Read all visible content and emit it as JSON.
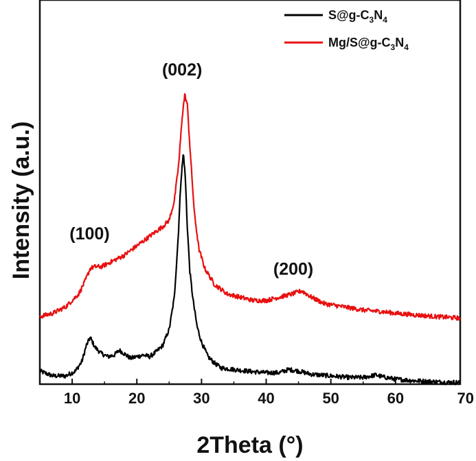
{
  "chart_data": {
    "type": "line",
    "title": "",
    "xlabel": "2Theta (°)",
    "ylabel": "Intensity (a.u.)",
    "xlim": [
      5,
      70
    ],
    "ylim": [
      0,
      110
    ],
    "x_ticks": [
      10,
      20,
      30,
      40,
      50,
      60,
      70
    ],
    "x_tick_labels": [
      "10",
      "20",
      "30",
      "40",
      "50",
      "60",
      "70"
    ],
    "y_ticks_shown": false,
    "grid": false,
    "legend_position": "top-right",
    "series": [
      {
        "name": "S@g-C3N4",
        "legend_parts": [
          "S@g-C",
          "3",
          "N",
          "4"
        ],
        "color": "#000000",
        "x": [
          5,
          7,
          9,
          10.5,
          11.5,
          12.2,
          12.8,
          13.5,
          14.5,
          15.5,
          16.5,
          17.3,
          18,
          19,
          20,
          21,
          22,
          23,
          24,
          25,
          25.8,
          26.4,
          26.8,
          27.2,
          27.5,
          27.8,
          28.2,
          28.7,
          29.3,
          30,
          31,
          32,
          33,
          35,
          38,
          40,
          42,
          43.5,
          45,
          47,
          50,
          53,
          55,
          57,
          58,
          60,
          63,
          66,
          68,
          70
        ],
        "values": [
          3.0,
          1.5,
          1.5,
          3.0,
          6.0,
          11.0,
          13.5,
          10.5,
          8.5,
          7.5,
          8.0,
          9.5,
          8.5,
          7.0,
          7.5,
          8.0,
          7.5,
          9.0,
          11.0,
          16.0,
          26.0,
          45.0,
          62.0,
          71.0,
          63.0,
          48.0,
          34.0,
          25.0,
          17.0,
          12.0,
          7.5,
          5.5,
          4.0,
          3.5,
          2.8,
          2.5,
          2.5,
          3.5,
          3.0,
          2.0,
          1.5,
          1.0,
          1.0,
          1.8,
          1.2,
          0.5,
          0.0,
          -0.3,
          -0.5,
          -0.5
        ]
      },
      {
        "name": "Mg/S@g-C3N4",
        "legend_parts": [
          "Mg/S@g-C",
          "3",
          "N",
          "4"
        ],
        "color": "#e81010",
        "x": [
          5,
          7,
          9,
          11,
          12,
          12.8,
          13.5,
          14.5,
          16,
          18,
          20,
          22,
          24,
          25,
          25.8,
          26.5,
          27,
          27.4,
          27.8,
          28.3,
          28.9,
          29.6,
          30.5,
          32,
          34,
          36,
          38,
          40,
          42,
          44,
          45.5,
          47,
          49,
          52,
          55,
          58,
          60,
          63,
          66,
          70
        ],
        "values": [
          20.0,
          21.0,
          23.0,
          27.0,
          31.0,
          35.0,
          35.5,
          35.5,
          37.0,
          39.0,
          42.0,
          45.0,
          48.0,
          50.0,
          56.0,
          68.0,
          82.0,
          89.0,
          86.0,
          70.0,
          52.0,
          41.0,
          35.0,
          30.0,
          27.0,
          26.0,
          25.0,
          25.0,
          26.0,
          27.0,
          28.0,
          26.0,
          24.0,
          23.0,
          22.0,
          21.5,
          21.0,
          20.5,
          20.0,
          19.5
        ]
      }
    ],
    "annotations": [
      {
        "text": "(100)",
        "x": 12.7,
        "y": 44
      },
      {
        "text": "(002)",
        "x": 27.0,
        "y": 95
      },
      {
        "text": "(200)",
        "x": 44.2,
        "y": 33
      }
    ]
  }
}
